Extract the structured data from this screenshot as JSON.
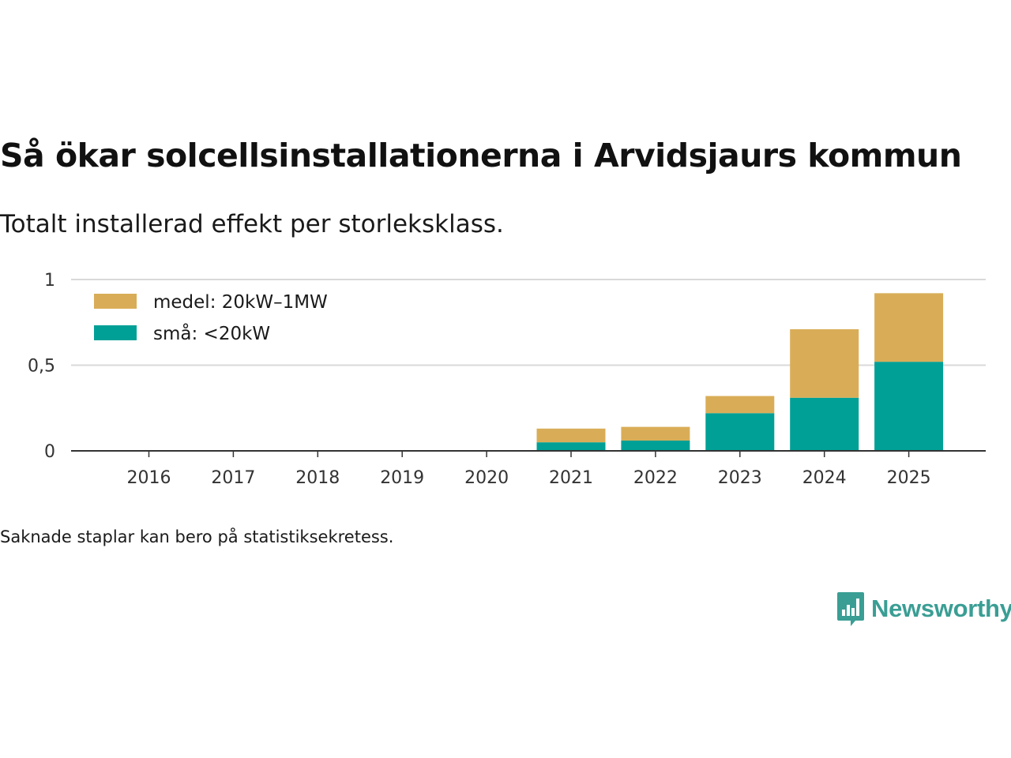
{
  "header": {
    "title": "Så ökar solcellsinstallationerna i Arvidsjaurs kommun",
    "subtitle": "Totalt installerad effekt per storleksklass."
  },
  "footer": {
    "note": "Saknade staplar kan bero på statistiksekretess.",
    "brand": "Newsworthy",
    "brand_icon": "bar-chart-speech-bubble-icon"
  },
  "colors": {
    "medel": "#d9ad57",
    "sma": "#00a096",
    "gridline": "#d9d9d9",
    "axis": "#333333",
    "brand": "#3a9e94"
  },
  "chart_data": {
    "type": "bar",
    "stacked": true,
    "categories": [
      "2016",
      "2017",
      "2018",
      "2019",
      "2020",
      "2021",
      "2022",
      "2023",
      "2024",
      "2025"
    ],
    "series": [
      {
        "name": "små: <20kW",
        "color": "#00a096",
        "values": [
          0,
          0,
          0,
          0,
          0,
          0.05,
          0.06,
          0.22,
          0.31,
          0.52
        ]
      },
      {
        "name": "medel: 20kW–1MW",
        "color": "#d9ad57",
        "values": [
          0,
          0,
          0,
          0,
          0,
          0.08,
          0.08,
          0.1,
          0.4,
          0.4
        ]
      }
    ],
    "ylim": [
      0,
      1
    ],
    "yticks": [
      0,
      0.5,
      1
    ],
    "ytick_labels": [
      "0",
      "0,5",
      "1"
    ],
    "legend_order": [
      "medel: 20kW–1MW",
      "små: <20kW"
    ],
    "legend_position": "top-left",
    "grid": true,
    "xlabel": "",
    "ylabel": ""
  }
}
